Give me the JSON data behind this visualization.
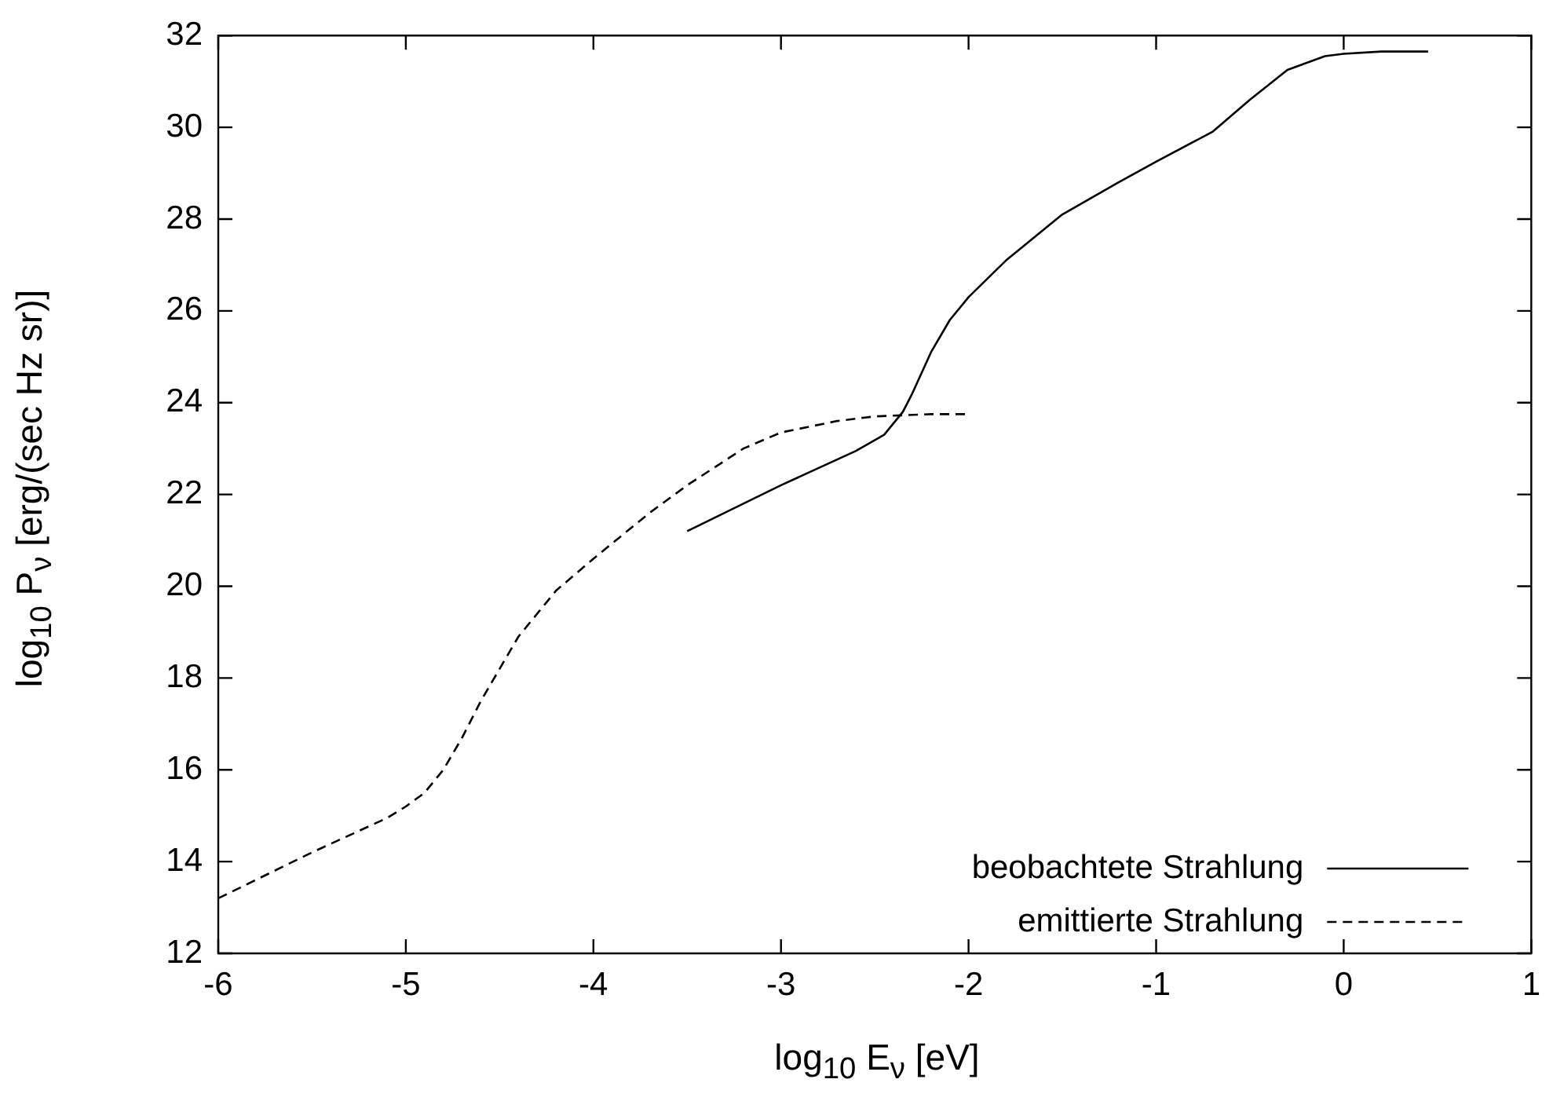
{
  "chart_data": {
    "type": "line",
    "xlabel": "log$_{10}$ E$_{ν}$ [eV]",
    "ylabel": "log$_{10}$ P$_{ν}$ [erg/(sec Hz sr)]",
    "xlim": [
      -6,
      1
    ],
    "xticks": [
      -6,
      -5,
      -4,
      -3,
      -2,
      -1,
      0,
      1
    ],
    "ylim": [
      12,
      32
    ],
    "yticks": [
      12,
      14,
      16,
      18,
      20,
      22,
      24,
      26,
      28,
      30,
      32
    ],
    "grid": false,
    "legend": "bottom right",
    "marker": "none",
    "series": [
      {
        "name": "beobachtete Strahlung",
        "color": "#000000",
        "line_style": "solid",
        "x": [
          -3.5,
          -3,
          -2.6,
          -2.45,
          -2.35,
          -2.3,
          -2.2,
          -2.1,
          -2,
          -1.8,
          -1.5,
          -1.2,
          -1,
          -0.7,
          -0.5,
          -0.3,
          -0.1,
          0,
          0.2,
          0.45
        ],
        "values": [
          21.2,
          22.2,
          22.95,
          23.3,
          23.8,
          24.2,
          25.1,
          25.8,
          26.3,
          27.1,
          28.1,
          28.8,
          29.25,
          29.9,
          30.6,
          31.25,
          31.55,
          31.6,
          31.65,
          31.65
        ]
      },
      {
        "name": "emittierte Strahlung",
        "color": "#000000",
        "line_style": "dashed",
        "x": [
          -6,
          -5.5,
          -5.1,
          -5,
          -4.9,
          -4.8,
          -4.7,
          -4.6,
          -4.4,
          -4.2,
          -4,
          -3.7,
          -3.5,
          -3.2,
          -3,
          -2.7,
          -2.5,
          -2.2,
          -2
        ],
        "values": [
          13.2,
          14.2,
          14.95,
          15.2,
          15.5,
          16.0,
          16.7,
          17.5,
          18.9,
          19.9,
          20.6,
          21.6,
          22.2,
          23.0,
          23.35,
          23.6,
          23.7,
          23.75,
          23.75
        ]
      }
    ]
  }
}
